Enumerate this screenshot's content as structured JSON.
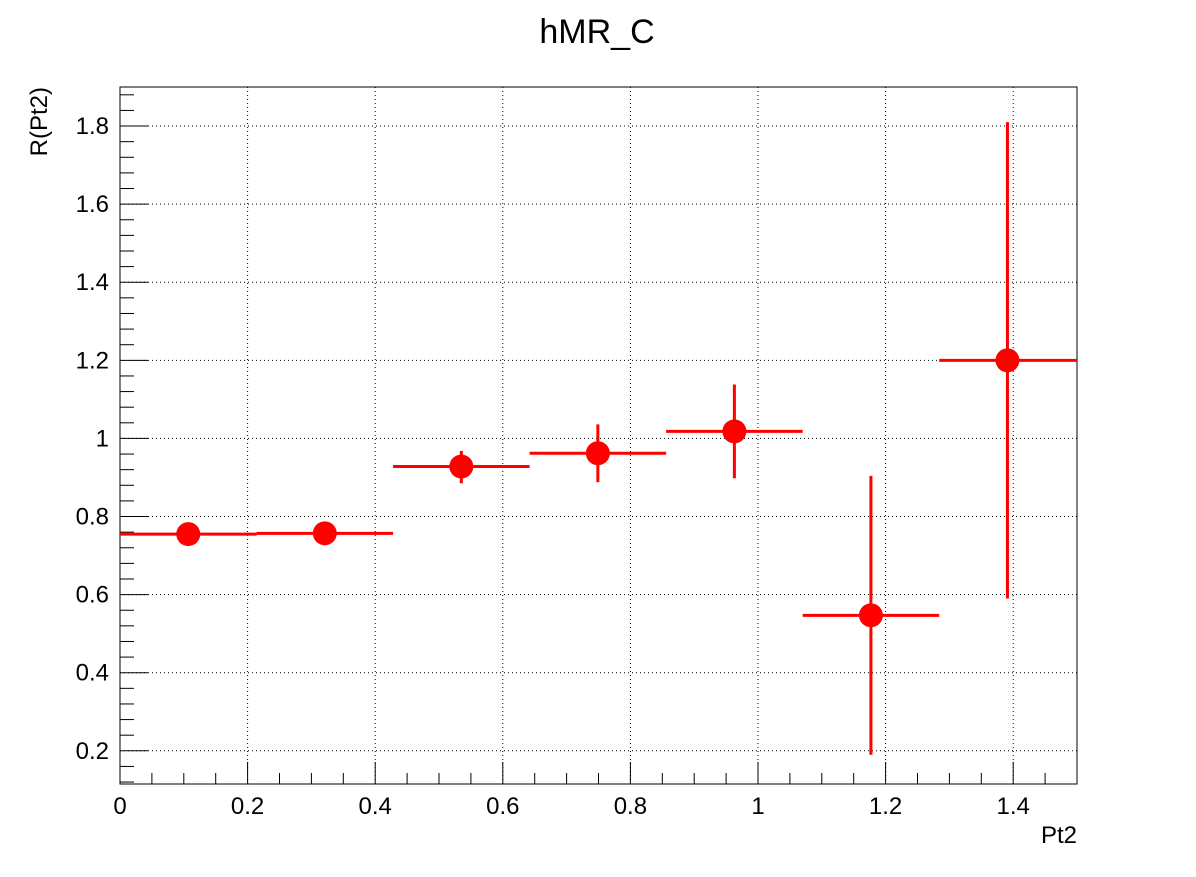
{
  "chart_data": {
    "type": "scatter",
    "title": "hMR_C",
    "xlabel": "Pt2",
    "ylabel": "R(Pt2)",
    "xlim": [
      0,
      1.5
    ],
    "ylim": [
      0.115,
      1.9
    ],
    "grid": true,
    "x_ticks": [
      {
        "value": 0,
        "label": "0"
      },
      {
        "value": 0.2,
        "label": "0.2"
      },
      {
        "value": 0.4,
        "label": "0.4"
      },
      {
        "value": 0.6,
        "label": "0.6"
      },
      {
        "value": 0.8,
        "label": "0.8"
      },
      {
        "value": 1.0,
        "label": "1"
      },
      {
        "value": 1.2,
        "label": "1.2"
      },
      {
        "value": 1.4,
        "label": "1.4"
      }
    ],
    "y_ticks": [
      {
        "value": 0.2,
        "label": "0.2"
      },
      {
        "value": 0.4,
        "label": "0.4"
      },
      {
        "value": 0.6,
        "label": "0.6"
      },
      {
        "value": 0.8,
        "label": "0.8"
      },
      {
        "value": 1.0,
        "label": "1"
      },
      {
        "value": 1.2,
        "label": "1.2"
      },
      {
        "value": 1.4,
        "label": "1.4"
      },
      {
        "value": 1.6,
        "label": "1.6"
      },
      {
        "value": 1.8,
        "label": "1.8"
      }
    ],
    "color": "#ff0000",
    "points": [
      {
        "x": 0.107,
        "y": 0.755,
        "x_low": 0.0,
        "x_high": 0.214,
        "y_low": 0.755,
        "y_high": 0.755
      },
      {
        "x": 0.321,
        "y": 0.757,
        "x_low": 0.214,
        "x_high": 0.428,
        "y_low": 0.757,
        "y_high": 0.757
      },
      {
        "x": 0.535,
        "y": 0.928,
        "x_low": 0.428,
        "x_high": 0.642,
        "y_low": 0.885,
        "y_high": 0.968
      },
      {
        "x": 0.749,
        "y": 0.962,
        "x_low": 0.642,
        "x_high": 0.856,
        "y_low": 0.888,
        "y_high": 1.036
      },
      {
        "x": 0.963,
        "y": 1.018,
        "x_low": 0.856,
        "x_high": 1.07,
        "y_low": 0.898,
        "y_high": 1.138
      },
      {
        "x": 1.177,
        "y": 0.547,
        "x_low": 1.07,
        "x_high": 1.284,
        "y_low": 0.19,
        "y_high": 0.904
      },
      {
        "x": 1.391,
        "y": 1.2,
        "x_low": 1.284,
        "x_high": 1.5,
        "y_low": 0.59,
        "y_high": 1.81
      }
    ]
  }
}
